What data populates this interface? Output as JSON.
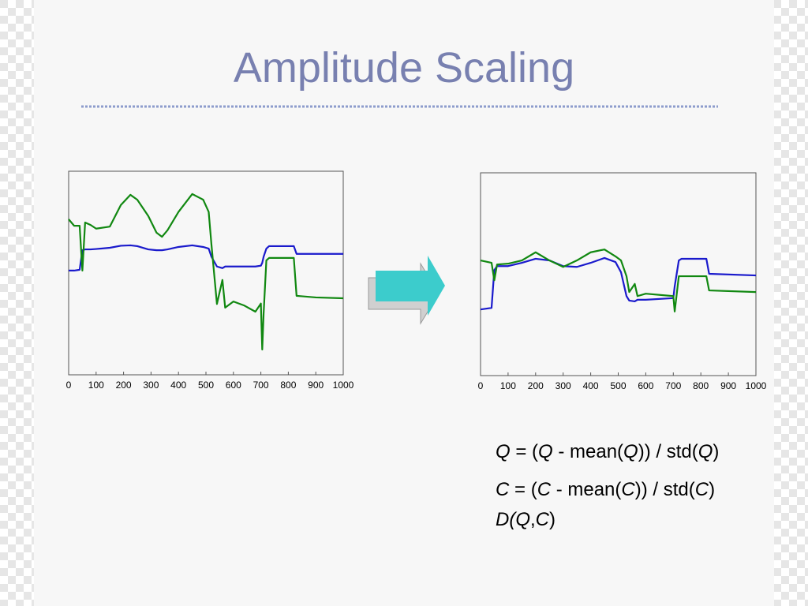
{
  "title": "Amplitude Scaling",
  "charts": [
    {
      "type": "line",
      "x": [
        0,
        20,
        40,
        50,
        60,
        80,
        100,
        150,
        190,
        225,
        250,
        290,
        320,
        340,
        360,
        400,
        450,
        490,
        510,
        520,
        540,
        560,
        570,
        600,
        640,
        680,
        700,
        705,
        710,
        720,
        730,
        820,
        830,
        900,
        1000
      ],
      "series": [
        {
          "color": "#1a1acc",
          "values": [
            2.56,
            2.56,
            2.58,
            3.06,
            3.08,
            3.08,
            3.09,
            3.12,
            3.17,
            3.18,
            3.16,
            3.08,
            3.06,
            3.06,
            3.08,
            3.14,
            3.18,
            3.14,
            3.1,
            2.9,
            2.66,
            2.62,
            2.66,
            2.66,
            2.66,
            2.66,
            2.68,
            2.75,
            2.9,
            3.1,
            3.16,
            3.16,
            2.97,
            2.97,
            2.97
          ]
        },
        {
          "color": "#118811",
          "values": [
            3.82,
            3.66,
            3.66,
            2.56,
            3.74,
            3.68,
            3.59,
            3.64,
            4.17,
            4.42,
            4.3,
            3.9,
            3.49,
            3.39,
            3.55,
            4.0,
            4.44,
            4.3,
            4.0,
            3.2,
            1.74,
            2.33,
            1.65,
            1.8,
            1.7,
            1.55,
            1.75,
            0.62,
            1.5,
            2.81,
            2.87,
            2.87,
            1.94,
            1.9,
            1.88
          ]
        }
      ],
      "xlim": [
        0,
        1000
      ],
      "xticks": [
        0,
        100,
        200,
        300,
        400,
        500,
        600,
        700,
        800,
        900,
        1000
      ],
      "ylim": [
        0,
        5
      ]
    },
    {
      "type": "line",
      "x": [
        0,
        40,
        50,
        60,
        100,
        150,
        200,
        250,
        300,
        350,
        400,
        450,
        490,
        510,
        530,
        540,
        560,
        570,
        600,
        700,
        705,
        720,
        730,
        820,
        830,
        1000
      ],
      "series": [
        {
          "color": "#1a1acc",
          "values": [
            1.63,
            1.67,
            2.6,
            2.7,
            2.7,
            2.78,
            2.88,
            2.84,
            2.7,
            2.68,
            2.78,
            2.9,
            2.8,
            2.55,
            1.96,
            1.85,
            1.83,
            1.87,
            1.87,
            1.91,
            2.2,
            2.84,
            2.88,
            2.88,
            2.51,
            2.47
          ]
        },
        {
          "color": "#118811",
          "values": [
            2.84,
            2.78,
            2.35,
            2.74,
            2.76,
            2.84,
            3.04,
            2.84,
            2.68,
            2.84,
            3.04,
            3.11,
            2.94,
            2.84,
            2.45,
            2.06,
            2.26,
            1.96,
            2.02,
            1.96,
            1.58,
            2.45,
            2.45,
            2.45,
            2.1,
            2.06
          ]
        }
      ],
      "xlim": [
        0,
        1000
      ],
      "xticks": [
        0,
        100,
        200,
        300,
        400,
        500,
        600,
        700,
        800,
        900,
        1000
      ],
      "ylim": [
        0,
        5
      ]
    }
  ],
  "equations": [
    [
      {
        "t": "Q",
        "i": true
      },
      {
        "t": " = ("
      },
      {
        "t": "Q",
        "i": true
      },
      {
        "t": " - mean("
      },
      {
        "t": "Q",
        "i": true
      },
      {
        "t": ")) / std("
      },
      {
        "t": "Q",
        "i": true
      },
      {
        "t": ")"
      }
    ],
    [
      {
        "t": "C",
        "i": true
      },
      {
        "t": " = ("
      },
      {
        "t": "C",
        "i": true
      },
      {
        "t": " - mean("
      },
      {
        "t": "C",
        "i": true
      },
      {
        "t": ")) / std("
      },
      {
        "t": "C",
        "i": true
      },
      {
        "t": ")"
      }
    ],
    [
      {
        "t": "D(Q",
        "i": true
      },
      {
        "t": ","
      },
      {
        "t": "C",
        "i": true
      },
      {
        "t": ")"
      }
    ]
  ]
}
